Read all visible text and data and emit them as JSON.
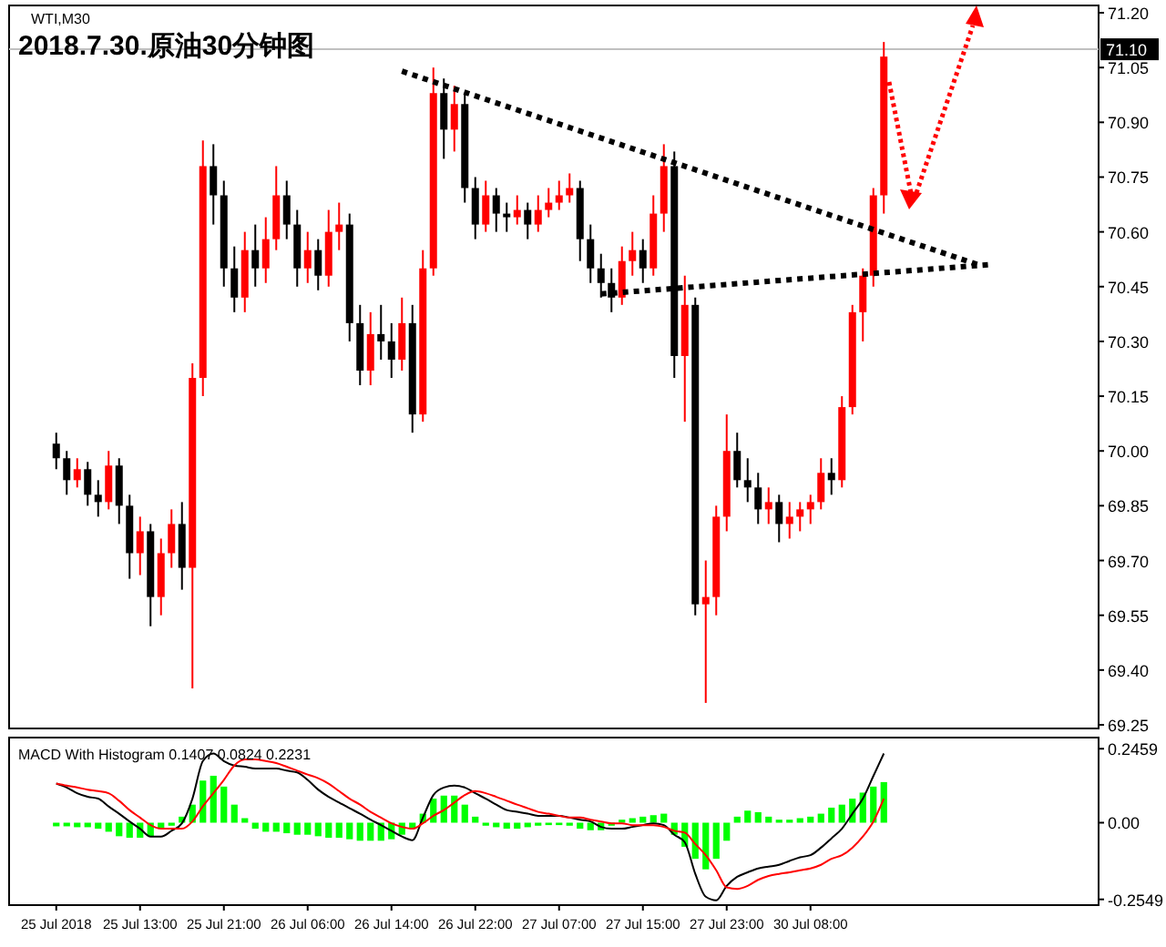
{
  "chart_data": [
    {
      "type": "candlestick",
      "title": "2018.7.30.原油30分钟图",
      "subtitle": "WTI,M30",
      "categories": [
        null,
        null,
        null,
        null,
        null,
        null,
        null,
        null,
        null,
        null,
        null,
        null,
        null,
        null,
        null,
        null,
        null,
        null,
        null,
        null,
        null,
        null,
        null,
        null,
        null,
        null,
        null,
        null,
        null,
        null,
        null,
        null,
        null,
        null,
        null,
        null,
        null,
        null,
        null,
        null,
        null,
        null,
        null,
        null,
        null,
        null,
        null,
        null,
        null,
        null,
        null,
        null,
        null,
        null,
        null,
        null,
        null,
        null,
        null,
        null,
        null,
        null,
        null,
        null,
        null,
        null,
        null,
        null,
        null,
        null,
        null,
        null,
        null,
        null,
        null,
        null,
        null,
        null,
        null,
        null,
        null,
        null,
        null,
        null,
        null,
        null,
        null,
        null,
        null,
        null,
        null,
        null,
        null,
        null,
        null,
        null,
        null,
        null,
        null,
        null,
        null,
        null,
        null,
        null
      ],
      "ohlc": [
        null,
        null,
        null,
        null,
        [
          70.02,
          70.05,
          69.95,
          69.98
        ],
        [
          69.98,
          70.0,
          69.88,
          69.92
        ],
        [
          69.92,
          69.98,
          69.9,
          69.95
        ],
        [
          69.95,
          69.97,
          69.85,
          69.88
        ],
        [
          69.88,
          69.92,
          69.82,
          69.86
        ],
        [
          69.86,
          70.0,
          69.84,
          69.96
        ],
        [
          69.96,
          69.98,
          69.8,
          69.85
        ],
        [
          69.85,
          69.88,
          69.65,
          69.72
        ],
        [
          69.72,
          69.82,
          69.66,
          69.78
        ],
        [
          69.78,
          69.8,
          69.52,
          69.6
        ],
        [
          69.6,
          69.76,
          69.55,
          69.72
        ],
        [
          69.72,
          69.84,
          69.68,
          69.8
        ],
        [
          69.8,
          69.86,
          69.62,
          69.68
        ],
        [
          69.68,
          70.24,
          69.35,
          70.2
        ],
        [
          70.2,
          70.85,
          70.15,
          70.78
        ],
        [
          70.78,
          70.84,
          70.62,
          70.7
        ],
        [
          70.7,
          70.74,
          70.45,
          70.5
        ],
        [
          70.5,
          70.56,
          70.38,
          70.42
        ],
        [
          70.42,
          70.6,
          70.38,
          70.55
        ],
        [
          70.55,
          70.62,
          70.45,
          70.5
        ],
        [
          70.5,
          70.64,
          70.46,
          70.58
        ],
        [
          70.58,
          70.78,
          70.55,
          70.7
        ],
        [
          70.7,
          70.74,
          70.58,
          70.62
        ],
        [
          70.62,
          70.66,
          70.45,
          70.5
        ],
        [
          70.5,
          70.6,
          70.46,
          70.55
        ],
        [
          70.55,
          70.58,
          70.44,
          70.48
        ],
        [
          70.48,
          70.66,
          70.45,
          70.6
        ],
        [
          70.6,
          70.68,
          70.55,
          70.62
        ],
        [
          70.62,
          70.65,
          70.3,
          70.35
        ],
        [
          70.35,
          70.4,
          70.18,
          70.22
        ],
        [
          70.22,
          70.38,
          70.18,
          70.32
        ],
        [
          70.32,
          70.4,
          70.25,
          70.3
        ],
        [
          70.3,
          70.35,
          70.2,
          70.25
        ],
        [
          70.25,
          70.42,
          70.22,
          70.35
        ],
        [
          70.35,
          70.4,
          70.05,
          70.1
        ],
        [
          70.1,
          70.55,
          70.08,
          70.5
        ],
        [
          70.5,
          71.05,
          70.48,
          70.98
        ],
        [
          70.98,
          71.02,
          70.8,
          70.88
        ],
        [
          70.88,
          71.0,
          70.82,
          70.95
        ],
        [
          70.95,
          70.98,
          70.68,
          70.72
        ],
        [
          70.72,
          70.75,
          70.58,
          70.62
        ],
        [
          70.62,
          70.74,
          70.6,
          70.7
        ],
        [
          70.7,
          70.72,
          70.6,
          70.65
        ],
        [
          70.65,
          70.68,
          70.6,
          70.64
        ],
        [
          70.64,
          70.7,
          70.62,
          70.66
        ],
        [
          70.66,
          70.68,
          70.58,
          70.62
        ],
        [
          70.62,
          70.7,
          70.6,
          70.66
        ],
        [
          70.66,
          70.72,
          70.64,
          70.68
        ],
        [
          70.68,
          70.74,
          70.66,
          70.7
        ],
        [
          70.7,
          70.76,
          70.68,
          70.72
        ],
        [
          70.72,
          70.74,
          70.52,
          70.58
        ],
        [
          70.58,
          70.62,
          70.46,
          70.5
        ],
        [
          70.5,
          70.54,
          70.42,
          70.46
        ],
        [
          70.46,
          70.5,
          70.38,
          70.42
        ],
        [
          70.42,
          70.56,
          70.4,
          70.52
        ],
        [
          70.52,
          70.6,
          70.48,
          70.55
        ],
        [
          70.55,
          70.58,
          70.46,
          70.5
        ],
        [
          70.5,
          70.7,
          70.48,
          70.65
        ],
        [
          70.65,
          70.84,
          70.6,
          70.78
        ],
        [
          70.78,
          70.82,
          70.2,
          70.26
        ],
        [
          70.26,
          70.48,
          70.08,
          70.4
        ],
        [
          70.4,
          70.42,
          69.55,
          69.58
        ],
        [
          69.58,
          69.7,
          69.31,
          69.6
        ],
        [
          69.6,
          69.85,
          69.55,
          69.82
        ],
        [
          69.82,
          70.1,
          69.78,
          70.0
        ],
        [
          70.0,
          70.05,
          69.9,
          69.92
        ],
        [
          69.92,
          69.98,
          69.86,
          69.9
        ],
        [
          69.9,
          69.94,
          69.8,
          69.84
        ],
        [
          69.84,
          69.9,
          69.8,
          69.86
        ],
        [
          69.86,
          69.88,
          69.75,
          69.8
        ],
        [
          69.8,
          69.86,
          69.76,
          69.82
        ],
        [
          69.82,
          69.86,
          69.78,
          69.84
        ],
        [
          69.84,
          69.88,
          69.8,
          69.86
        ],
        [
          69.86,
          69.98,
          69.84,
          69.94
        ],
        [
          69.94,
          69.98,
          69.88,
          69.92
        ],
        [
          69.92,
          70.15,
          69.9,
          70.12
        ],
        [
          70.12,
          70.4,
          70.1,
          70.38
        ],
        [
          70.38,
          70.5,
          70.3,
          70.48
        ],
        [
          70.48,
          70.72,
          70.45,
          70.7
        ],
        [
          70.7,
          71.12,
          70.65,
          71.08
        ],
        null,
        null,
        null,
        null,
        null,
        null,
        null,
        null,
        null,
        null,
        null,
        null,
        null,
        null,
        null,
        null,
        null,
        null,
        null,
        null
      ],
      "colors": [
        null,
        null,
        null,
        null,
        "#000000",
        "#000000",
        "#ff0000",
        "#000000",
        "#000000",
        "#ff0000",
        "#000000",
        "#000000",
        "#ff0000",
        "#000000",
        "#ff0000",
        "#ff0000",
        "#000000",
        "#ff0000",
        "#ff0000",
        "#000000",
        "#000000",
        "#000000",
        "#ff0000",
        "#000000",
        "#ff0000",
        "#ff0000",
        "#000000",
        "#000000",
        "#ff0000",
        "#000000",
        "#ff0000",
        "#ff0000",
        "#000000",
        "#000000",
        "#ff0000",
        "#000000",
        "#000000",
        "#ff0000",
        "#000000",
        "#ff0000",
        "#ff0000",
        "#000000",
        "#ff0000",
        "#000000",
        "#000000",
        "#ff0000",
        "#000000",
        "#000000",
        "#ff0000",
        "#000000",
        "#ff0000",
        "#ff0000",
        "#ff0000",
        "#ff0000",
        "#000000",
        "#000000",
        "#000000",
        "#000000",
        "#ff0000",
        "#ff0000",
        "#000000",
        "#ff0000",
        "#ff0000",
        "#000000",
        "#ff0000",
        "#000000",
        "#ff0000",
        "#ff0000",
        "#ff0000",
        "#000000",
        "#000000",
        "#000000",
        "#ff0000",
        "#000000",
        "#ff0000",
        "#ff0000",
        "#ff0000",
        "#ff0000",
        "#000000",
        "#ff0000",
        "#ff0000",
        "#ff0000",
        "#ff0000",
        "#ff0000",
        null,
        null,
        null,
        null,
        null,
        null,
        null,
        null,
        null,
        null,
        null,
        null,
        null,
        null,
        null,
        null,
        null,
        null,
        null,
        null
      ],
      "ylim": [
        69.24,
        71.22
      ],
      "yticks": [
        {
          "value": 71.2,
          "label": "71.20"
        },
        {
          "value": 71.05,
          "label": "71.05"
        },
        {
          "value": 70.9,
          "label": "70.90"
        },
        {
          "value": 70.75,
          "label": "70.75"
        },
        {
          "value": 70.6,
          "label": "70.60"
        },
        {
          "value": 70.45,
          "label": "70.45"
        },
        {
          "value": 70.3,
          "label": "70.30"
        },
        {
          "value": 70.15,
          "label": "70.15"
        },
        {
          "value": 70,
          "label": "70.00"
        },
        {
          "value": 69.85,
          "label": "69.85"
        },
        {
          "value": 69.7,
          "label": "69.70"
        },
        {
          "value": 69.55,
          "label": "69.55"
        },
        {
          "value": 69.4,
          "label": "69.40"
        },
        {
          "value": 69.25,
          "label": "69.25"
        }
      ],
      "tick_labels": "y",
      "series": [
        {
          "type": "line",
          "color": "#000000",
          "line_style": "dotted",
          "values": [
            null,
            null,
            null,
            null,
            null,
            null,
            null,
            null,
            null,
            null,
            null,
            null,
            null,
            null,
            null,
            null,
            null,
            null,
            null,
            null,
            null,
            null,
            null,
            null,
            null,
            null,
            null,
            null,
            null,
            null,
            null,
            null,
            null,
            null,
            null,
            null,
            null,
            71.04,
            null,
            null,
            null,
            null,
            null,
            null,
            null,
            null,
            null,
            null,
            null,
            null,
            null,
            null,
            null,
            null,
            null,
            null,
            null,
            null,
            null,
            null,
            null,
            null,
            null,
            null,
            null,
            null,
            null,
            null,
            null,
            null,
            null,
            null,
            null,
            null,
            null,
            null,
            null,
            null,
            null,
            null,
            null,
            null,
            null,
            null,
            null,
            null,
            null,
            null,
            null,
            null,
            null,
            null,
            70.51,
            null,
            null,
            null,
            null,
            null,
            null,
            null,
            null,
            null,
            null,
            null
          ]
        },
        {
          "type": "line",
          "color": "#000000",
          "line_style": "dotted",
          "values": [
            null,
            null,
            null,
            null,
            null,
            null,
            null,
            null,
            null,
            null,
            null,
            null,
            null,
            null,
            null,
            null,
            null,
            null,
            null,
            null,
            null,
            null,
            null,
            null,
            null,
            null,
            null,
            null,
            null,
            null,
            null,
            null,
            null,
            null,
            null,
            null,
            null,
            null,
            null,
            null,
            null,
            null,
            null,
            null,
            null,
            null,
            null,
            null,
            null,
            null,
            null,
            null,
            null,
            null,
            null,
            null,
            70.43,
            null,
            null,
            null,
            null,
            null,
            null,
            null,
            null,
            null,
            null,
            null,
            null,
            null,
            null,
            null,
            null,
            null,
            null,
            null,
            null,
            null,
            null,
            null,
            null,
            null,
            null,
            null,
            null,
            null,
            null,
            null,
            null,
            null,
            null,
            null,
            null,
            70.51,
            null,
            null,
            null,
            null,
            null,
            null,
            null,
            null,
            null,
            null
          ]
        }
      ],
      "ref_lines": [
        {
          "axis": "y",
          "value": 71.1,
          "label": "71.10",
          "color": "#c0c0c0"
        }
      ]
    },
    {
      "type": "bar",
      "annotations": [
        "MACD With Histogram 0.1407 0.0824 0.2231"
      ],
      "categories": [
        null,
        null,
        null,
        null,
        "25 Jul 2018",
        null,
        null,
        null,
        null,
        null,
        null,
        null,
        "25 Jul 13:00",
        null,
        null,
        null,
        null,
        null,
        null,
        null,
        "25 Jul 21:00",
        null,
        null,
        null,
        null,
        null,
        null,
        null,
        "26 Jul 06:00",
        null,
        null,
        null,
        null,
        null,
        null,
        null,
        "26 Jul 14:00",
        null,
        null,
        null,
        null,
        null,
        null,
        null,
        "26 Jul 22:00",
        null,
        null,
        null,
        null,
        null,
        null,
        null,
        "27 Jul 07:00",
        null,
        null,
        null,
        null,
        null,
        null,
        null,
        "27 Jul 15:00",
        null,
        null,
        null,
        null,
        null,
        null,
        null,
        "27 Jul 23:00",
        null,
        null,
        null,
        null,
        null,
        null,
        null,
        "30 Jul 08:00",
        null,
        null,
        null,
        null,
        null,
        null,
        null,
        null,
        null,
        null,
        null,
        null,
        null,
        null,
        null,
        null,
        null,
        null,
        null,
        null,
        null,
        null,
        null,
        null,
        null,
        null,
        null
      ],
      "series": [
        {
          "type": "bar",
          "color": "#00ff00",
          "values": [
            null,
            null,
            null,
            null,
            -0.012,
            -0.012,
            -0.015,
            -0.015,
            -0.02,
            -0.03,
            -0.045,
            -0.05,
            -0.05,
            -0.045,
            -0.02,
            -0.01,
            0.02,
            0.06,
            0.14,
            0.156,
            0.12,
            0.06,
            0.015,
            -0.02,
            -0.03,
            -0.03,
            -0.035,
            -0.04,
            -0.04,
            -0.045,
            -0.05,
            -0.05,
            -0.055,
            -0.06,
            -0.06,
            -0.06,
            -0.055,
            -0.04,
            -0.02,
            0.03,
            0.08,
            0.09,
            0.09,
            0.06,
            0.02,
            -0.01,
            -0.015,
            -0.02,
            -0.02,
            -0.015,
            -0.01,
            -0.008,
            -0.008,
            -0.01,
            -0.02,
            -0.025,
            -0.025,
            -0.01,
            0.01,
            0.015,
            0.02,
            0.025,
            0.03,
            -0.04,
            -0.08,
            -0.12,
            -0.155,
            -0.12,
            -0.06,
            0.02,
            0.04,
            0.035,
            0.02,
            0.01,
            0.01,
            0.015,
            0.02,
            0.03,
            0.05,
            0.06,
            0.08,
            0.1,
            0.12,
            0.135,
            null,
            null,
            null,
            null,
            null,
            null,
            null,
            null,
            null,
            null,
            null,
            null,
            null,
            null,
            null,
            null,
            null,
            null,
            null,
            null
          ]
        },
        {
          "type": "line",
          "color": "#000000",
          "values": [
            null,
            null,
            null,
            null,
            0.13,
            0.117,
            0.098,
            0.086,
            0.08,
            0.054,
            0.03,
            0.004,
            -0.02,
            -0.046,
            -0.046,
            -0.027,
            -0.002,
            0.08,
            0.205,
            0.23,
            0.205,
            0.19,
            0.186,
            0.18,
            0.18,
            0.18,
            0.173,
            0.167,
            0.142,
            0.11,
            0.086,
            0.067,
            0.048,
            0.03,
            0.01,
            -0.008,
            -0.027,
            -0.046,
            -0.058,
            0.017,
            0.092,
            0.117,
            0.123,
            0.117,
            0.098,
            0.08,
            0.06,
            0.042,
            0.036,
            0.03,
            0.023,
            0.023,
            0.023,
            0.017,
            0.01,
            0.004,
            -0.014,
            -0.02,
            -0.02,
            -0.014,
            -0.008,
            -0.002,
            -0.008,
            -0.04,
            -0.065,
            -0.17,
            -0.246,
            -0.258,
            -0.21,
            -0.18,
            -0.165,
            -0.152,
            -0.146,
            -0.14,
            -0.127,
            -0.115,
            -0.108,
            -0.083,
            -0.052,
            -0.02,
            0.03,
            0.08,
            0.155,
            0.23,
            null,
            null,
            null,
            null,
            null,
            null,
            null,
            null,
            null,
            null,
            null,
            null,
            null,
            null,
            null,
            null,
            null,
            null,
            null,
            null
          ]
        },
        {
          "type": "line",
          "color": "#ff0000",
          "values": [
            null,
            null,
            null,
            null,
            0.13,
            0.123,
            0.117,
            0.11,
            0.105,
            0.098,
            0.073,
            0.042,
            0.017,
            -0.008,
            -0.02,
            -0.02,
            -0.02,
            0.004,
            0.055,
            0.098,
            0.142,
            0.19,
            0.21,
            0.21,
            0.205,
            0.198,
            0.186,
            0.173,
            0.16,
            0.148,
            0.13,
            0.105,
            0.08,
            0.06,
            0.036,
            0.017,
            -0.002,
            -0.014,
            -0.02,
            -0.002,
            0.023,
            0.042,
            0.067,
            0.092,
            0.105,
            0.098,
            0.086,
            0.073,
            0.06,
            0.048,
            0.036,
            0.03,
            0.023,
            0.017,
            0.017,
            0.01,
            0.004,
            -0.002,
            -0.002,
            -0.008,
            -0.008,
            -0.008,
            -0.014,
            -0.027,
            -0.033,
            -0.071,
            -0.108,
            -0.158,
            -0.215,
            -0.22,
            -0.21,
            -0.19,
            -0.177,
            -0.17,
            -0.165,
            -0.158,
            -0.152,
            -0.14,
            -0.12,
            -0.108,
            -0.083,
            -0.046,
            0.004,
            0.08,
            null,
            null,
            null,
            null,
            null,
            null,
            null,
            null,
            null,
            null,
            null,
            null,
            null,
            null,
            null,
            null,
            null,
            null,
            null,
            null
          ]
        }
      ],
      "ylim": [
        -0.274,
        0.283
      ],
      "yticks": [
        {
          "value": 0.2459,
          "label": "0.2459"
        },
        {
          "value": 0,
          "label": "0.00"
        },
        {
          "value": -0.2549,
          "label": "-0.2549"
        }
      ]
    }
  ]
}
